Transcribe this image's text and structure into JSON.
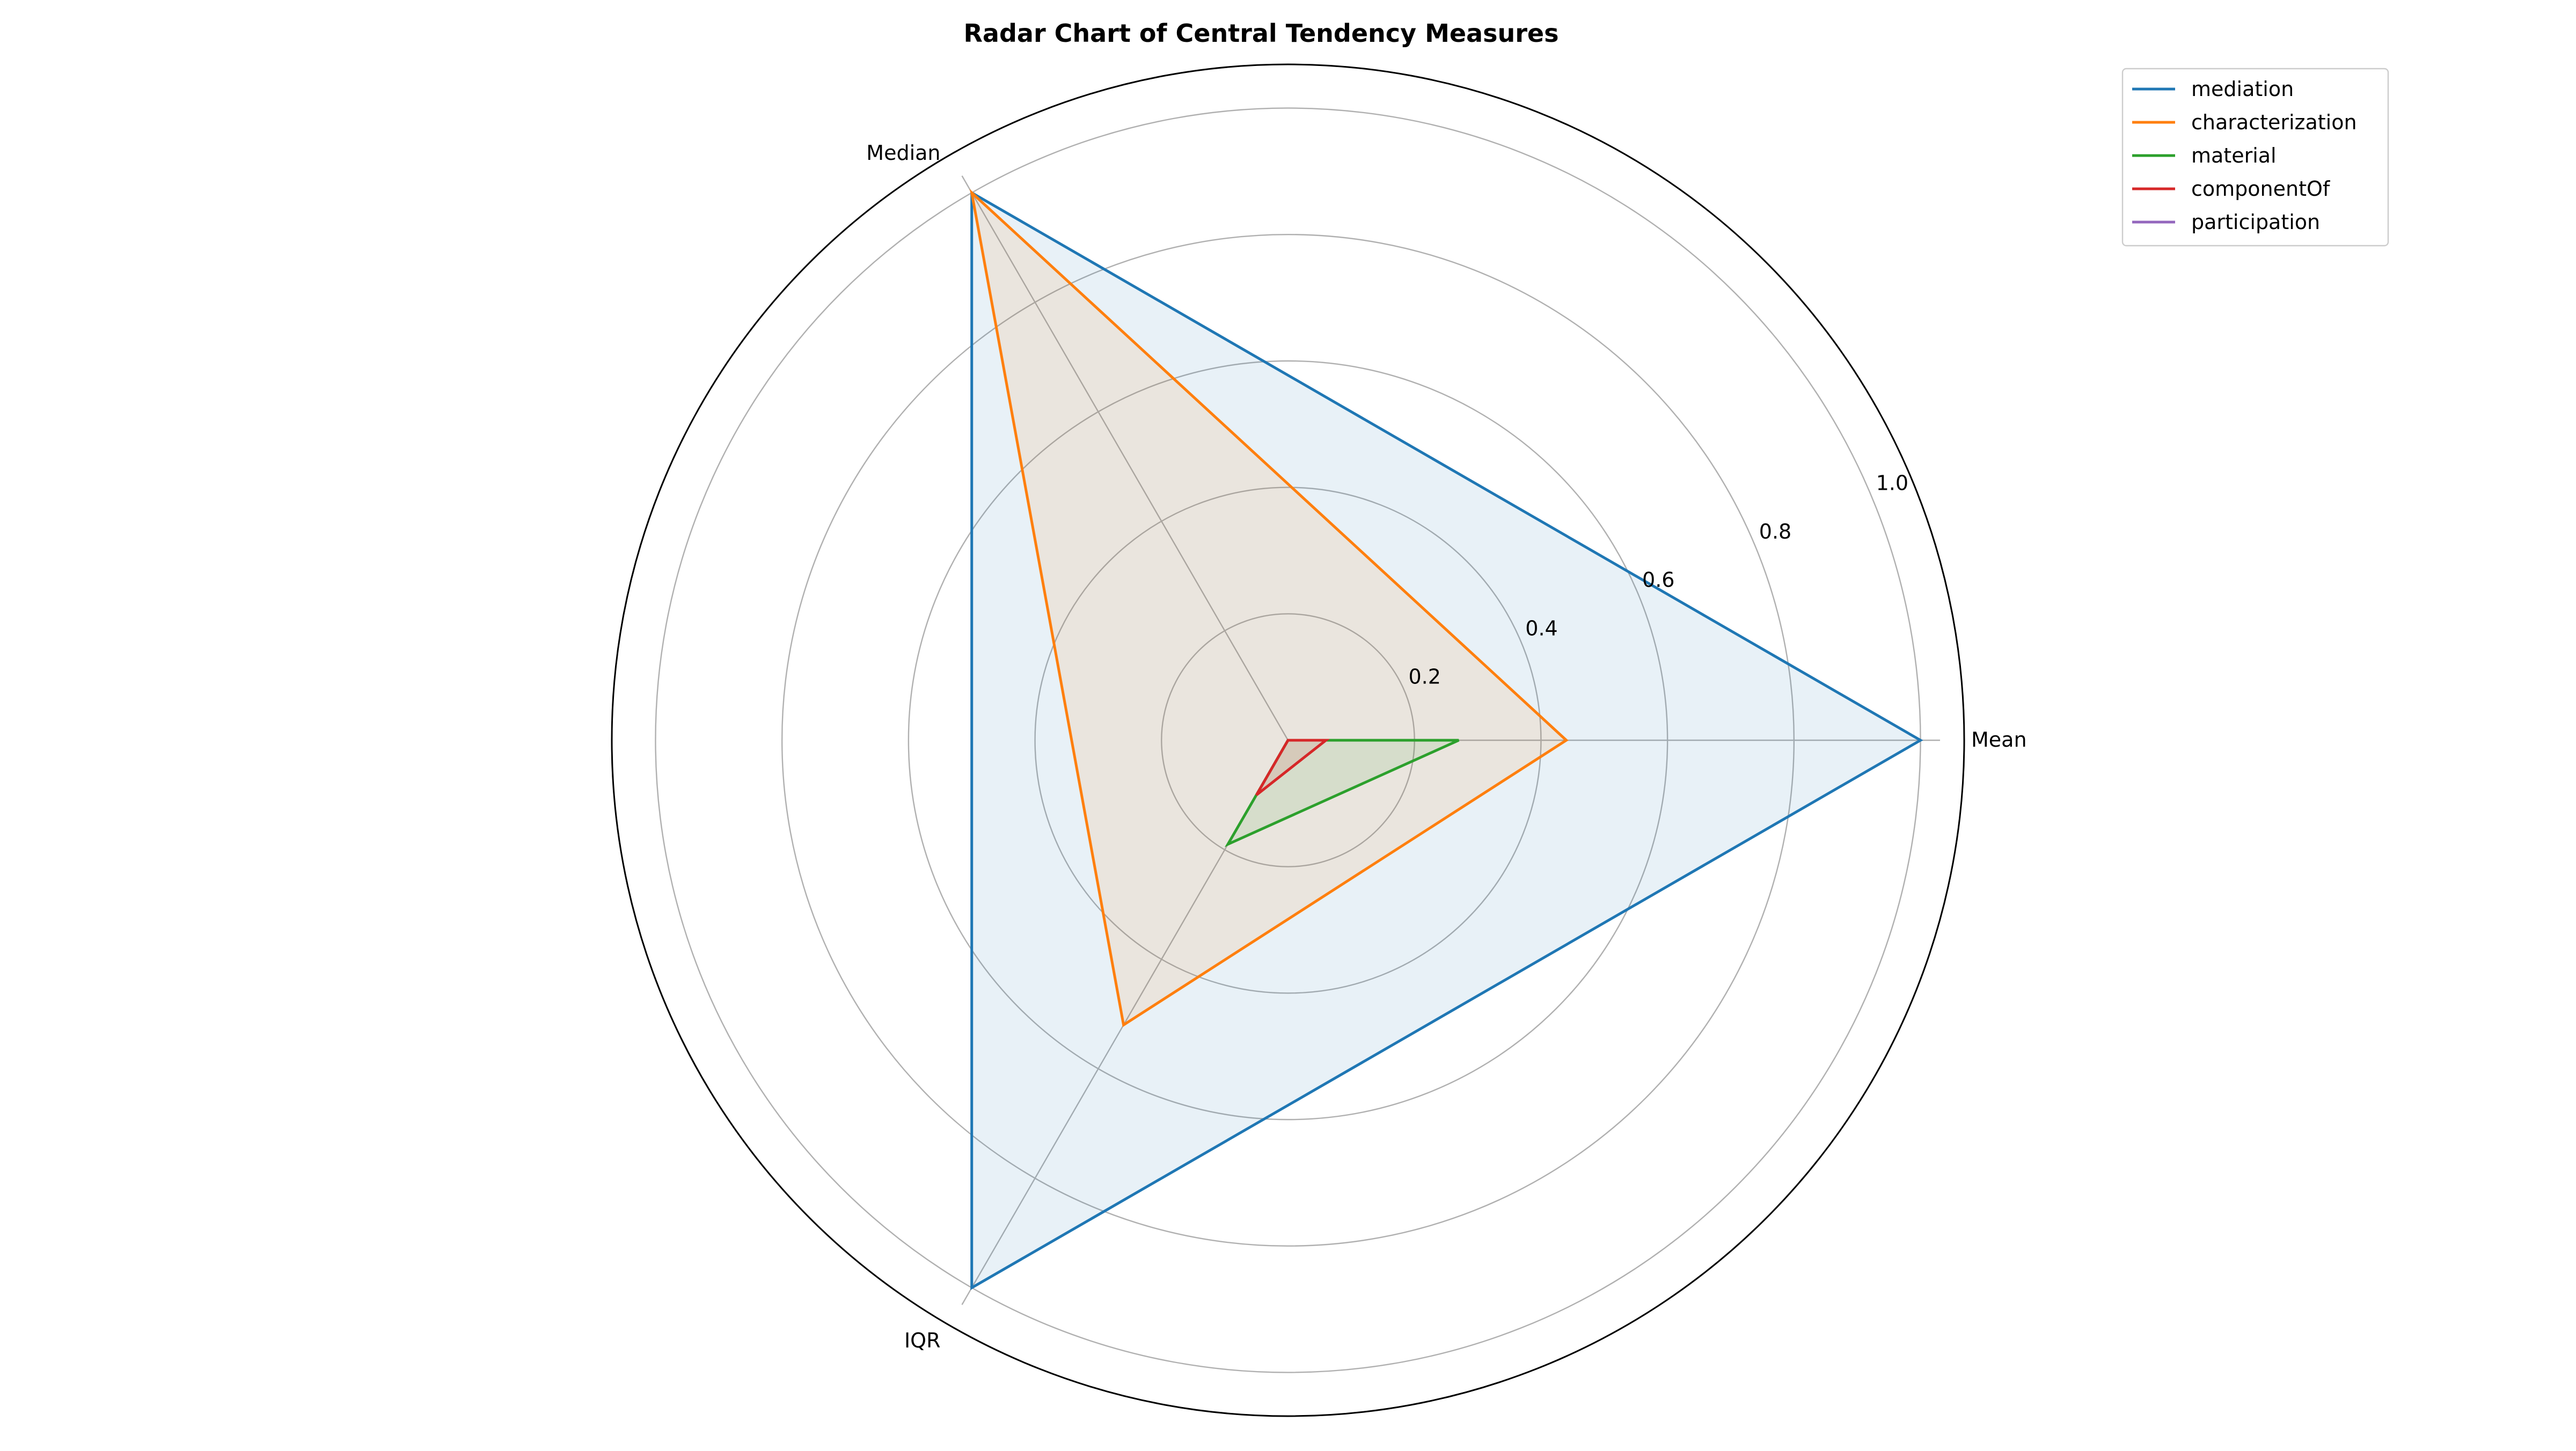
{
  "chart_data": {
    "type": "radar",
    "title": "Radar Chart of Central Tendency Measures",
    "axes": [
      "Mean",
      "Median",
      "IQR"
    ],
    "rlim": [
      0,
      1.0
    ],
    "radial_ticks": [
      0.2,
      0.4,
      0.6,
      0.8,
      1.0
    ],
    "radial_tick_labels": [
      "0.2",
      "0.4",
      "0.6",
      "0.8",
      "1.0"
    ],
    "grid": true,
    "legend_position": "top-right",
    "series": [
      {
        "name": "mediation",
        "values": [
          1.0,
          1.0,
          1.0
        ],
        "color": "#1f77b4",
        "fill": true
      },
      {
        "name": "characterization",
        "values": [
          0.44,
          1.0,
          0.52
        ],
        "color": "#ff7f0e",
        "fill": true
      },
      {
        "name": "material",
        "values": [
          0.27,
          0.0,
          0.19
        ],
        "color": "#2ca02c",
        "fill": true
      },
      {
        "name": "componentOf",
        "values": [
          0.06,
          0.0,
          0.1
        ],
        "color": "#d62728",
        "fill": true
      },
      {
        "name": "participation",
        "values": [
          0.0,
          0.0,
          0.0
        ],
        "color": "#9467bd",
        "fill": true
      }
    ]
  }
}
